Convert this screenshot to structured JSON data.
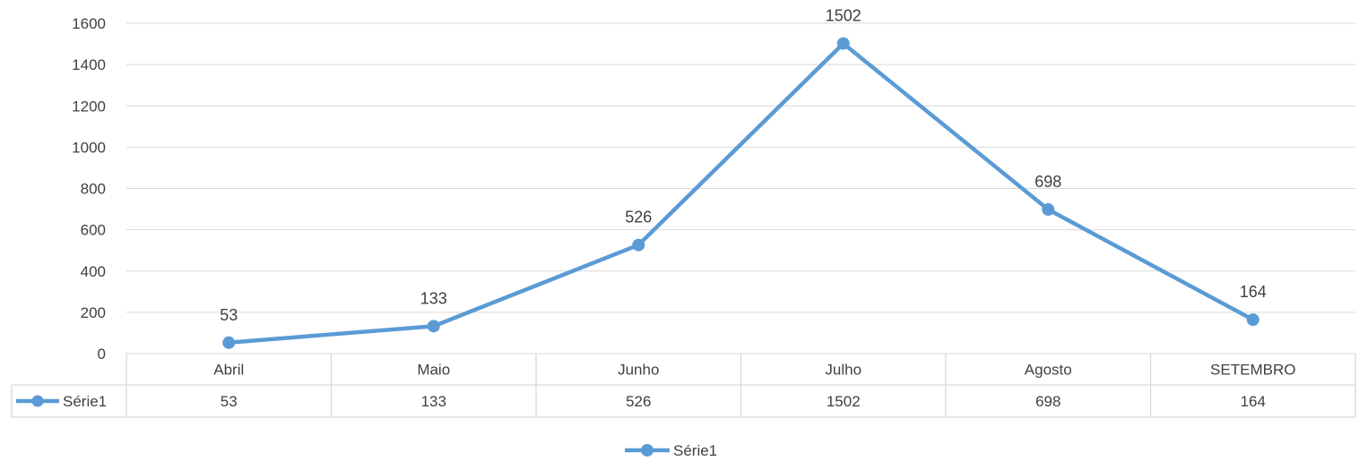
{
  "chart_data": {
    "type": "line",
    "categories": [
      "Abril",
      "Maio",
      "Junho",
      "Julho",
      "Agosto",
      "SETEMBRO"
    ],
    "series": [
      {
        "name": "Série1",
        "values": [
          53,
          133,
          526,
          1502,
          698,
          164
        ]
      }
    ],
    "ylim": [
      0,
      1600
    ],
    "yticks": [
      0,
      200,
      400,
      600,
      800,
      1000,
      1200,
      1400,
      1600
    ],
    "data_labels": true,
    "data_table": true,
    "grid": true,
    "legend_position": "bottom",
    "colors": {
      "series": "#5B9BD5",
      "grid": "#D9D9D9",
      "text": "#404040"
    }
  }
}
